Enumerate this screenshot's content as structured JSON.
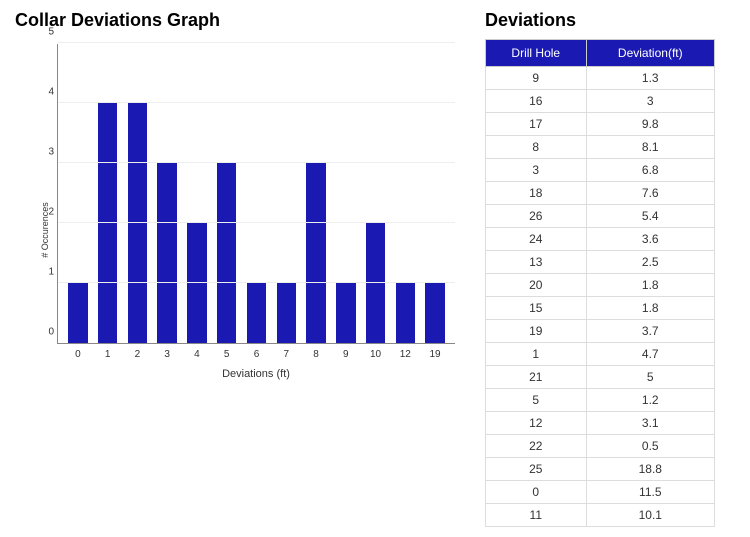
{
  "chart": {
    "title": "Collar Deviations Graph",
    "type": "bar",
    "xlabel": "Deviations (ft)",
    "ylabel": "# Occurences",
    "bar_color": "#1a1ab3",
    "background_color": "#ffffff",
    "grid_color": "#eeeeee",
    "axis_color": "#888888",
    "title_fontsize": 18,
    "label_fontsize": 11,
    "tick_fontsize": 10,
    "ylim": [
      0,
      5
    ],
    "yticks": [
      0,
      1,
      2,
      3,
      4,
      5
    ],
    "categories": [
      "0",
      "1",
      "2",
      "3",
      "4",
      "5",
      "6",
      "7",
      "8",
      "9",
      "10",
      "12",
      "19"
    ],
    "values": [
      1,
      4,
      4,
      3,
      2,
      3,
      1,
      1,
      3,
      1,
      2,
      1,
      1
    ],
    "bar_width_ratio": 0.82
  },
  "table": {
    "title": "Deviations",
    "header_bg": "#1a1ab3",
    "header_color": "#ffffff",
    "border_color": "#dddddd",
    "columns": [
      "Drill Hole",
      "Deviation(ft)"
    ],
    "rows": [
      [
        "9",
        "1.3"
      ],
      [
        "16",
        "3"
      ],
      [
        "17",
        "9.8"
      ],
      [
        "8",
        "8.1"
      ],
      [
        "3",
        "6.8"
      ],
      [
        "18",
        "7.6"
      ],
      [
        "26",
        "5.4"
      ],
      [
        "24",
        "3.6"
      ],
      [
        "13",
        "2.5"
      ],
      [
        "20",
        "1.8"
      ],
      [
        "15",
        "1.8"
      ],
      [
        "19",
        "3.7"
      ],
      [
        "1",
        "4.7"
      ],
      [
        "21",
        "5"
      ],
      [
        "5",
        "1.2"
      ],
      [
        "12",
        "3.1"
      ],
      [
        "22",
        "0.5"
      ],
      [
        "25",
        "18.8"
      ],
      [
        "0",
        "11.5"
      ],
      [
        "11",
        "10.1"
      ]
    ]
  }
}
